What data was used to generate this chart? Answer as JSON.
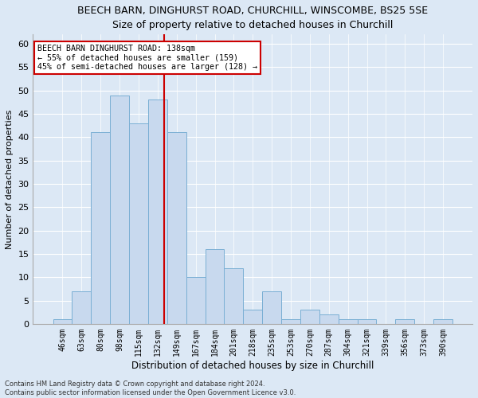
{
  "title1": "BEECH BARN, DINGHURST ROAD, CHURCHILL, WINSCOMBE, BS25 5SE",
  "title2": "Size of property relative to detached houses in Churchill",
  "xlabel": "Distribution of detached houses by size in Churchill",
  "ylabel": "Number of detached properties",
  "categories": [
    "46sqm",
    "63sqm",
    "80sqm",
    "98sqm",
    "115sqm",
    "132sqm",
    "149sqm",
    "167sqm",
    "184sqm",
    "201sqm",
    "218sqm",
    "235sqm",
    "253sqm",
    "270sqm",
    "287sqm",
    "304sqm",
    "321sqm",
    "339sqm",
    "356sqm",
    "373sqm",
    "390sqm"
  ],
  "values": [
    1,
    7,
    41,
    49,
    43,
    48,
    41,
    10,
    16,
    12,
    3,
    7,
    1,
    3,
    2,
    1,
    1,
    0,
    1,
    0,
    1
  ],
  "bar_color": "#c8d9ee",
  "bar_edgecolor": "#7aafd4",
  "vline_color": "#cc0000",
  "annotation_text": "BEECH BARN DINGHURST ROAD: 138sqm\n← 55% of detached houses are smaller (159)\n45% of semi-detached houses are larger (128) →",
  "annotation_box_color": "#ffffff",
  "annotation_box_edgecolor": "#cc0000",
  "ylim": [
    0,
    62
  ],
  "yticks": [
    0,
    5,
    10,
    15,
    20,
    25,
    30,
    35,
    40,
    45,
    50,
    55,
    60
  ],
  "footer1": "Contains HM Land Registry data © Crown copyright and database right 2024.",
  "footer2": "Contains public sector information licensed under the Open Government Licence v3.0.",
  "bg_color": "#dce8f5",
  "plot_bg_color": "#dce8f5",
  "grid_color": "#ffffff",
  "title1_fontsize": 9,
  "title2_fontsize": 9
}
